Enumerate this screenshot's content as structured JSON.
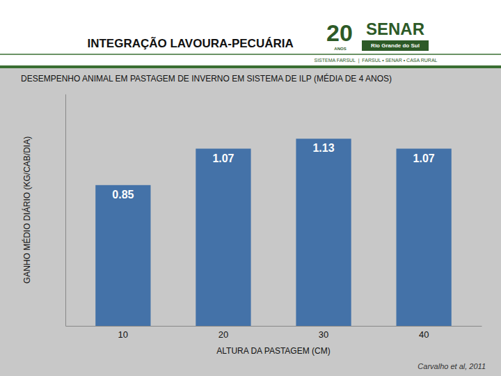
{
  "chart_data": {
    "type": "bar",
    "title": "INTEGRAÇÃO LAVOURA-PECUÁRIA",
    "subtitle": "DESEMPENHO ANIMAL EM PASTAGEM DE INVERNO EM SISTEMA DE ILP (MÉDIA DE 4 ANOS)",
    "x_label": "ALTURA DA PASTAGEM (CM)",
    "y_label": "GANHO MÉDIO DIÁRIO (KG/CAB/DIA)",
    "annotations": [
      "Carvalho et al, 2011",
      "20",
      "ANOS",
      "SENAR",
      "Rio Grande do Sul",
      "SISTEMA FARSUL  |  FARSUL • SENAR • CASA RURAL"
    ],
    "categories": [
      "10",
      "20",
      "30",
      "40"
    ],
    "values": [
      0.85,
      1.07,
      1.13,
      1.07
    ],
    "color": "#4472a8",
    "ylim": [
      0,
      1.4
    ],
    "grid": false,
    "data_labels": true,
    "tick_labels": "x"
  }
}
